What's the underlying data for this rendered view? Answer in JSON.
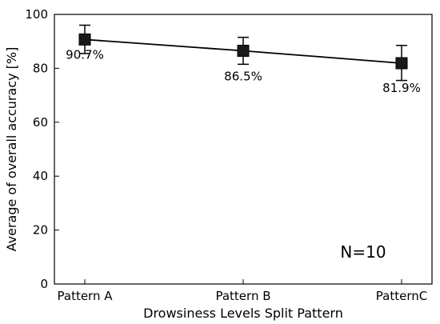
{
  "chart_data": {
    "type": "line",
    "categories": [
      "Pattern A",
      "Pattern B",
      "PatternC"
    ],
    "values": [
      90.7,
      86.5,
      81.9
    ],
    "error_high": [
      96.0,
      91.5,
      88.5
    ],
    "error_low": [
      85.5,
      81.5,
      75.5
    ],
    "data_labels": [
      "90.7%",
      "86.5%",
      "81.9%"
    ],
    "xlabel": "Drowsiness Levels Split Pattern",
    "ylabel": "Average of overall accuracy [%]",
    "ylim": [
      0,
      100
    ],
    "yticks": [
      0,
      20,
      40,
      60,
      80,
      100
    ],
    "annotation": "N=10",
    "marker": "square",
    "grid": false,
    "line_color": "#000000",
    "marker_color": "#1a1a1a"
  }
}
